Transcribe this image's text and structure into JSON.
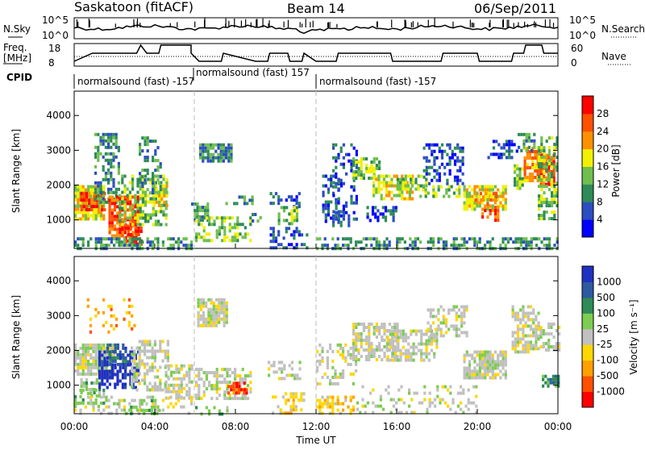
{
  "header": {
    "station": "Saskatoon (fitACF)",
    "beam": "Beam 14",
    "date": "06/Sep/2011"
  },
  "top_panels": {
    "nsky_label": "N.Sky",
    "nsky_ticks": [
      "10^5",
      "10^0"
    ],
    "nsearch_label": "N.Search",
    "nsearch_ticks": [
      "10^5",
      "10^0"
    ],
    "freq_label": "Freq.",
    "freq_unit": "[MHz]",
    "freq_ticks": [
      "18",
      "8"
    ],
    "nave_label": "Nave",
    "nave_ticks": [
      "60",
      "0"
    ],
    "cpid_label": "CPID",
    "cpid_modes": [
      {
        "label": "normalsound (fast) -157",
        "start_hour": 0
      },
      {
        "label": "normalsound (fast) 157",
        "start_hour": 5.8
      },
      {
        "label": "normalsound (fast) -157",
        "start_hour": 12
      }
    ]
  },
  "chart_data": [
    {
      "type": "heatmap",
      "title": "",
      "ylabel": "Slant Range [km]",
      "xlabel": "",
      "x_range_hours": [
        0,
        24
      ],
      "ylim": [
        180,
        4700
      ],
      "yticks": [
        "1000",
        "2000",
        "3000",
        "4000"
      ],
      "colorbar": {
        "label": "Power [dB]",
        "ticks": [
          "4",
          "8",
          "12",
          "16",
          "20",
          "24",
          "28"
        ],
        "colors": [
          "#0000ff",
          "#2c4ec0",
          "#2e8b57",
          "#6fbf4e",
          "#f0f000",
          "#ff9000",
          "#ff5000",
          "#ff0000"
        ]
      }
    },
    {
      "type": "heatmap",
      "title": "",
      "ylabel": "Slant Range [km]",
      "xlabel": "Time UT",
      "x_range_hours": [
        0,
        24
      ],
      "ylim": [
        180,
        4700
      ],
      "yticks": [
        "1000",
        "2000",
        "3000",
        "4000"
      ],
      "xticks": [
        "00:00",
        "04:00",
        "08:00",
        "12:00",
        "16:00",
        "20:00",
        "00:00"
      ],
      "colorbar": {
        "label": "Velocity [m s⁻¹]",
        "ticks": [
          "1000",
          "500",
          "100",
          "25",
          "-25",
          "-100",
          "-500",
          "-1000"
        ],
        "colors": [
          "#2030c0",
          "#2e5aa0",
          "#2e8b57",
          "#7ccd50",
          "#c0c0c0",
          "#ffd700",
          "#ffa000",
          "#ff5000",
          "#ff0000"
        ]
      }
    }
  ]
}
